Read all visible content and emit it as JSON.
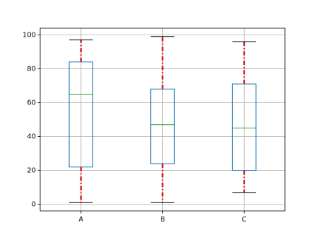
{
  "chart_data": {
    "type": "box",
    "categories": [
      "A",
      "B",
      "C"
    ],
    "boxes": [
      {
        "whislo": 1,
        "q1": 22,
        "med": 65,
        "q3": 84,
        "whishi": 97
      },
      {
        "whislo": 1,
        "q1": 24,
        "med": 47,
        "q3": 68,
        "whishi": 99
      },
      {
        "whislo": 7,
        "q1": 20,
        "med": 45,
        "q3": 71,
        "whishi": 96
      }
    ],
    "box_color": "#1f77b4",
    "median_color": "#2ca02c",
    "whisker_color": "#e00000",
    "cap_color": "#000000",
    "ylim": [
      -3.9,
      103.9
    ],
    "yticks": [
      0,
      20,
      40,
      60,
      80,
      100
    ],
    "grid": true
  }
}
